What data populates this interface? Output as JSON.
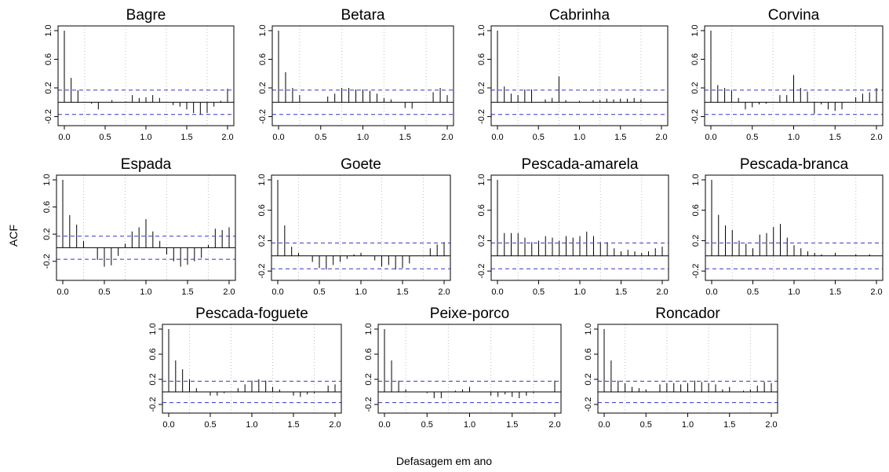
{
  "figure": {
    "ylabel": "ACF",
    "xlabel": "Defasagem em ano"
  },
  "chart_data": [
    {
      "type": "bar",
      "title": "Bagre",
      "xlim": [
        0,
        2
      ],
      "ylim": [
        -0.25,
        1.0
      ],
      "xticks": [
        "0.0",
        "0.5",
        "1.0",
        "1.5",
        "2.0"
      ],
      "yticks": [
        "-0.2",
        "0.2",
        "0.6",
        "1.0"
      ],
      "ci": [
        0.17,
        -0.17
      ],
      "x": [
        0,
        0.0833,
        0.1667,
        0.25,
        0.3333,
        0.4167,
        0.5,
        0.5833,
        0.6667,
        0.75,
        0.8333,
        0.9167,
        1.0,
        1.0833,
        1.1667,
        1.25,
        1.3333,
        1.4167,
        1.5,
        1.5833,
        1.6667,
        1.75,
        1.8333,
        1.9167,
        2.0
      ],
      "values": [
        1.0,
        0.34,
        0.17,
        0.0,
        -0.02,
        -0.1,
        0.0,
        0.03,
        0.0,
        0.01,
        0.1,
        0.06,
        0.07,
        0.1,
        0.06,
        0.0,
        -0.04,
        -0.06,
        -0.1,
        -0.15,
        -0.17,
        -0.15,
        -0.06,
        0.02,
        0.19
      ]
    },
    {
      "type": "bar",
      "title": "Betara",
      "xlim": [
        0,
        2
      ],
      "ylim": [
        -0.25,
        1.0
      ],
      "xticks": [
        "0.0",
        "0.5",
        "1.0",
        "1.5",
        "2.0"
      ],
      "yticks": [
        "-0.2",
        "0.2",
        "0.6",
        "1.0"
      ],
      "ci": [
        0.17,
        -0.17
      ],
      "x": [
        0,
        0.0833,
        0.1667,
        0.25,
        0.3333,
        0.4167,
        0.5,
        0.5833,
        0.6667,
        0.75,
        0.8333,
        0.9167,
        1.0,
        1.0833,
        1.1667,
        1.25,
        1.3333,
        1.4167,
        1.5,
        1.5833,
        1.6667,
        1.75,
        1.8333,
        1.9167,
        2.0
      ],
      "values": [
        1.0,
        0.42,
        0.2,
        0.1,
        0.0,
        0.0,
        0.0,
        0.08,
        0.12,
        0.2,
        0.2,
        0.18,
        0.18,
        0.16,
        0.12,
        0.06,
        0.04,
        0.0,
        -0.08,
        -0.09,
        0.0,
        0.0,
        0.14,
        0.2,
        0.1
      ]
    },
    {
      "type": "bar",
      "title": "Cabrinha",
      "xlim": [
        0,
        2
      ],
      "ylim": [
        -0.25,
        1.0
      ],
      "xticks": [
        "0.0",
        "0.5",
        "1.0",
        "1.5",
        "2.0"
      ],
      "yticks": [
        "-0.2",
        "0.2",
        "0.6",
        "1.0"
      ],
      "ci": [
        0.17,
        -0.17
      ],
      "x": [
        0,
        0.0833,
        0.1667,
        0.25,
        0.3333,
        0.4167,
        0.5,
        0.5833,
        0.6667,
        0.75,
        0.8333,
        0.9167,
        1.0,
        1.0833,
        1.1667,
        1.25,
        1.3333,
        1.4167,
        1.5,
        1.5833,
        1.6667,
        1.75
      ],
      "values": [
        1.0,
        0.22,
        0.12,
        0.1,
        0.18,
        0.18,
        0.0,
        0.04,
        0.06,
        0.36,
        0.03,
        0.0,
        0.02,
        0.0,
        0.03,
        0.03,
        0.05,
        0.04,
        0.05,
        0.05,
        0.06,
        0.04
      ]
    },
    {
      "type": "bar",
      "title": "Corvina",
      "xlim": [
        0,
        2
      ],
      "ylim": [
        -0.25,
        1.0
      ],
      "xticks": [
        "0.0",
        "0.5",
        "1.0",
        "1.5",
        "2.0"
      ],
      "yticks": [
        "-0.2",
        "0.2",
        "0.6",
        "1.0"
      ],
      "ci": [
        0.17,
        -0.17
      ],
      "x": [
        0,
        0.0833,
        0.1667,
        0.25,
        0.3333,
        0.4167,
        0.5,
        0.5833,
        0.6667,
        0.75,
        0.8333,
        0.9167,
        1.0,
        1.0833,
        1.1667,
        1.25,
        1.3333,
        1.4167,
        1.5,
        1.5833,
        1.6667,
        1.75,
        1.8333,
        1.9167,
        2.0
      ],
      "values": [
        1.0,
        0.24,
        0.2,
        0.17,
        0.06,
        -0.1,
        -0.07,
        -0.03,
        -0.02,
        0.0,
        0.1,
        0.1,
        0.38,
        0.2,
        0.15,
        -0.16,
        -0.03,
        -0.1,
        -0.12,
        -0.1,
        0.0,
        0.07,
        0.12,
        0.14,
        0.2
      ]
    },
    {
      "type": "bar",
      "title": "Espada",
      "xlim": [
        0,
        2
      ],
      "ylim": [
        -0.4,
        1.0
      ],
      "xticks": [
        "0.0",
        "0.5",
        "1.0",
        "1.5",
        "2.0"
      ],
      "yticks": [
        "-0.2",
        "0.2",
        "0.6",
        "1.0"
      ],
      "ci": [
        0.17,
        -0.17
      ],
      "x": [
        0,
        0.0833,
        0.1667,
        0.25,
        0.3333,
        0.4167,
        0.5,
        0.5833,
        0.6667,
        0.75,
        0.8333,
        0.9167,
        1.0,
        1.0833,
        1.1667,
        1.25,
        1.3333,
        1.4167,
        1.5,
        1.5833,
        1.6667,
        1.75,
        1.8333,
        1.9167,
        2.0
      ],
      "values": [
        1.0,
        0.48,
        0.34,
        0.1,
        0.0,
        -0.18,
        -0.28,
        -0.26,
        -0.12,
        0.06,
        0.24,
        0.3,
        0.42,
        0.24,
        0.1,
        -0.1,
        -0.2,
        -0.28,
        -0.25,
        -0.2,
        -0.15,
        0.04,
        0.28,
        0.26,
        0.3
      ]
    },
    {
      "type": "bar",
      "title": "Goete",
      "xlim": [
        0,
        2
      ],
      "ylim": [
        -0.25,
        1.0
      ],
      "xticks": [
        "0.0",
        "0.5",
        "1.0",
        "1.5",
        "2.0"
      ],
      "yticks": [
        "-0.2",
        "0.2",
        "0.6",
        "1.0"
      ],
      "ci": [
        0.17,
        -0.17
      ],
      "x": [
        0,
        0.0833,
        0.1667,
        0.25,
        0.3333,
        0.4167,
        0.5,
        0.5833,
        0.6667,
        0.75,
        0.8333,
        0.9167,
        1.0,
        1.0833,
        1.1667,
        1.25,
        1.3333,
        1.4167,
        1.5,
        1.5833,
        1.6667,
        1.75,
        1.8333,
        1.9167,
        2.0
      ],
      "values": [
        1.0,
        0.4,
        0.12,
        0.04,
        0.0,
        -0.08,
        -0.16,
        -0.18,
        -0.12,
        -0.08,
        -0.04,
        0.02,
        0.04,
        0.0,
        -0.06,
        -0.14,
        -0.12,
        -0.18,
        -0.16,
        -0.1,
        0.0,
        0.0,
        0.1,
        0.15,
        0.18
      ]
    },
    {
      "type": "bar",
      "title": "Pescada-amarela",
      "xlim": [
        0,
        2
      ],
      "ylim": [
        -0.25,
        1.0
      ],
      "xticks": [
        "0.0",
        "0.5",
        "1.0",
        "1.5",
        "2.0"
      ],
      "yticks": [
        "-0.2",
        "0.2",
        "0.6",
        "1.0"
      ],
      "ci": [
        0.17,
        -0.17
      ],
      "x": [
        0,
        0.0833,
        0.1667,
        0.25,
        0.3333,
        0.4167,
        0.5,
        0.5833,
        0.6667,
        0.75,
        0.8333,
        0.9167,
        1.0,
        1.0833,
        1.1667,
        1.25,
        1.3333,
        1.4167,
        1.5,
        1.5833,
        1.6667,
        1.75,
        1.8333,
        1.9167,
        2.0
      ],
      "values": [
        1.0,
        0.3,
        0.3,
        0.3,
        0.24,
        0.18,
        0.2,
        0.26,
        0.24,
        0.2,
        0.26,
        0.24,
        0.26,
        0.32,
        0.26,
        0.18,
        0.18,
        0.1,
        0.06,
        0.08,
        0.06,
        0.04,
        0.06,
        0.1,
        0.12
      ]
    },
    {
      "type": "bar",
      "title": "Pescada-branca",
      "xlim": [
        0,
        2
      ],
      "ylim": [
        -0.25,
        1.0
      ],
      "xticks": [
        "0.0",
        "0.5",
        "1.0",
        "1.5",
        "2.0"
      ],
      "yticks": [
        "-0.2",
        "0.2",
        "0.6",
        "1.0"
      ],
      "ci": [
        0.17,
        -0.17
      ],
      "x": [
        0,
        0.0833,
        0.1667,
        0.25,
        0.3333,
        0.4167,
        0.5,
        0.5833,
        0.6667,
        0.75,
        0.8333,
        0.9167,
        1.0,
        1.0833,
        1.1667,
        1.25,
        1.3333,
        1.4167,
        1.5,
        1.5833,
        1.6667,
        1.75,
        1.8333,
        1.9167,
        2.0
      ],
      "values": [
        1.0,
        0.54,
        0.4,
        0.34,
        0.2,
        0.16,
        0.1,
        0.28,
        0.3,
        0.38,
        0.42,
        0.24,
        0.14,
        0.1,
        0.06,
        0.04,
        0.02,
        0.0,
        0.04,
        0.0,
        0.0,
        0.02,
        0.0,
        0.02,
        0.0
      ]
    },
    {
      "type": "bar",
      "title": "Pescada-foguete",
      "xlim": [
        0,
        2
      ],
      "ylim": [
        -0.25,
        1.0
      ],
      "xticks": [
        "0.0",
        "0.5",
        "1.0",
        "1.5",
        "2.0"
      ],
      "yticks": [
        "-0.2",
        "0.2",
        "0.6",
        "1.0"
      ],
      "ci": [
        0.17,
        -0.17
      ],
      "x": [
        0,
        0.0833,
        0.1667,
        0.25,
        0.3333,
        0.4167,
        0.5,
        0.5833,
        0.6667,
        0.75,
        0.8333,
        0.9167,
        1.0,
        1.0833,
        1.1667,
        1.25,
        1.3333,
        1.4167,
        1.5,
        1.5833,
        1.6667,
        1.75,
        1.8333,
        1.9167,
        2.0
      ],
      "values": [
        1.0,
        0.5,
        0.36,
        0.2,
        0.06,
        0.0,
        -0.06,
        -0.06,
        -0.02,
        0.0,
        0.06,
        0.12,
        0.18,
        0.2,
        0.18,
        0.08,
        0.04,
        0.0,
        -0.06,
        -0.08,
        -0.04,
        -0.02,
        0.0,
        0.1,
        0.12
      ]
    },
    {
      "type": "bar",
      "title": "Peixe-porco",
      "xlim": [
        0,
        2
      ],
      "ylim": [
        -0.25,
        1.0
      ],
      "xticks": [
        "0.0",
        "0.5",
        "1.0",
        "1.5",
        "2.0"
      ],
      "yticks": [
        "-0.2",
        "0.2",
        "0.6",
        "1.0"
      ],
      "ci": [
        0.17,
        -0.17
      ],
      "x": [
        0,
        0.0833,
        0.1667,
        0.25,
        0.3333,
        0.4167,
        0.5,
        0.5833,
        0.6667,
        0.75,
        0.8333,
        0.9167,
        1.0,
        1.0833,
        1.1667,
        1.25,
        1.3333,
        1.4167,
        1.5,
        1.5833,
        1.6667,
        1.75,
        1.8333,
        1.9167,
        2.0
      ],
      "values": [
        1.0,
        0.5,
        0.18,
        0.04,
        0.0,
        0.0,
        -0.02,
        -0.1,
        -0.1,
        0.0,
        0.02,
        0.04,
        0.08,
        0.0,
        0.0,
        -0.06,
        -0.08,
        -0.04,
        -0.08,
        -0.1,
        -0.06,
        -0.02,
        0.0,
        0.0,
        0.18
      ]
    },
    {
      "type": "bar",
      "title": "Roncador",
      "xlim": [
        0,
        2
      ],
      "ylim": [
        -0.25,
        1.0
      ],
      "xticks": [
        "0.0",
        "0.5",
        "1.0",
        "1.5",
        "2.0"
      ],
      "yticks": [
        "-0.2",
        "0.2",
        "0.6",
        "1.0"
      ],
      "ci": [
        0.17,
        -0.17
      ],
      "x": [
        0,
        0.0833,
        0.1667,
        0.25,
        0.3333,
        0.4167,
        0.5,
        0.5833,
        0.6667,
        0.75,
        0.8333,
        0.9167,
        1.0,
        1.0833,
        1.1667,
        1.25,
        1.3333,
        1.4167,
        1.5,
        1.5833,
        1.6667,
        1.75,
        1.8333,
        1.9167,
        2.0
      ],
      "values": [
        1.0,
        0.5,
        0.18,
        0.14,
        0.08,
        0.06,
        0.04,
        0.0,
        0.12,
        0.14,
        0.14,
        0.12,
        0.14,
        0.18,
        0.16,
        0.14,
        0.12,
        0.04,
        0.08,
        0.0,
        0.02,
        0.04,
        0.1,
        0.16,
        0.14
      ]
    }
  ]
}
